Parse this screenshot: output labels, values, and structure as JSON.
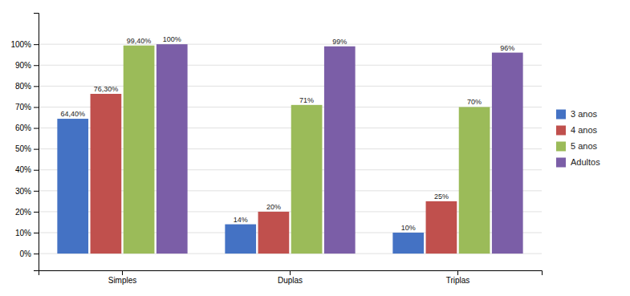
{
  "chart_data": {
    "type": "bar",
    "categories": [
      "Simples",
      "Duplas",
      "Triplas"
    ],
    "series": [
      {
        "name": "3 anos",
        "color": "#4472C4",
        "values": [
          64.4,
          14,
          10
        ],
        "value_labels": [
          "64,40%",
          "14%",
          "10%"
        ]
      },
      {
        "name": "4 anos",
        "color": "#C0504D",
        "values": [
          76.3,
          20,
          25
        ],
        "value_labels": [
          "76,30%",
          "20%",
          "25%"
        ]
      },
      {
        "name": "5 anos",
        "color": "#9BBB59",
        "values": [
          99.4,
          71,
          70
        ],
        "value_labels": [
          "99,40%",
          "71%",
          "70%"
        ]
      },
      {
        "name": "Adultos",
        "color": "#7B5EA7",
        "values": [
          100,
          99,
          96
        ],
        "value_labels": [
          "100%",
          "99%",
          "96%"
        ]
      }
    ],
    "ylim": [
      -8,
      115
    ],
    "yticks": [
      {
        "value": 0,
        "label": "0%"
      },
      {
        "value": 10,
        "label": "10%"
      },
      {
        "value": 20,
        "label": "20%"
      },
      {
        "value": 30,
        "label": "30%"
      },
      {
        "value": 40,
        "label": "40%"
      },
      {
        "value": 50,
        "label": "50%"
      },
      {
        "value": 60,
        "label": "60%"
      },
      {
        "value": 70,
        "label": "70%"
      },
      {
        "value": 80,
        "label": "80%"
      },
      {
        "value": 90,
        "label": "90%"
      },
      {
        "value": 100,
        "label": "100%"
      }
    ],
    "grid": true,
    "data_labels": true,
    "legend": "right"
  }
}
